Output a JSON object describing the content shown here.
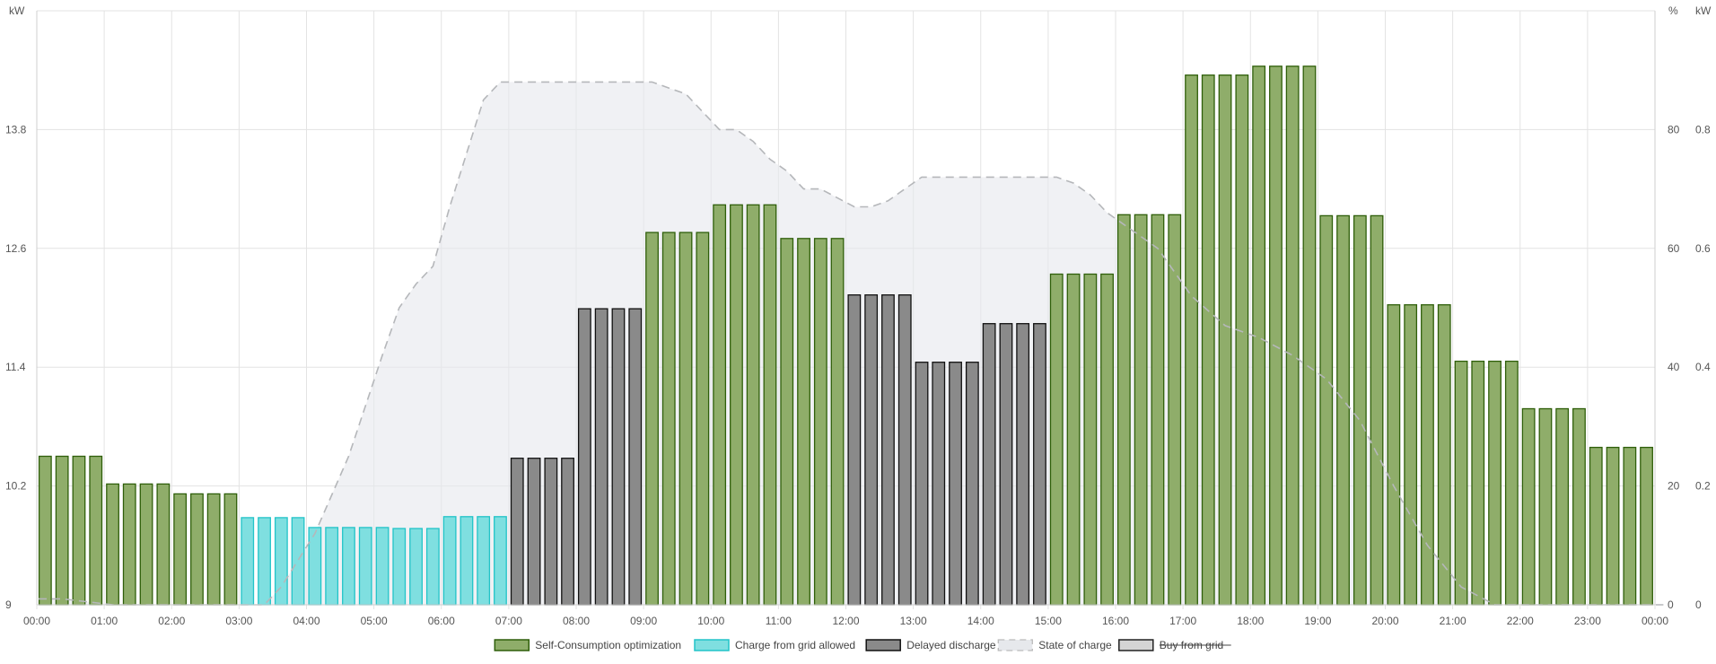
{
  "chart_data": {
    "type": "bar",
    "interval_minutes": 15,
    "x_ticks": [
      "00:00",
      "01:00",
      "02:00",
      "03:00",
      "04:00",
      "05:00",
      "06:00",
      "07:00",
      "08:00",
      "09:00",
      "10:00",
      "11:00",
      "12:00",
      "13:00",
      "14:00",
      "15:00",
      "16:00",
      "17:00",
      "18:00",
      "19:00",
      "20:00",
      "21:00",
      "22:00",
      "23:00",
      "00:00"
    ],
    "axes": {
      "left": {
        "unit": "kW",
        "min": 9,
        "max": 15,
        "ticks": [
          "9",
          "10.2",
          "11.4",
          "12.6",
          "13.8"
        ],
        "tick_values": [
          9,
          10.2,
          11.4,
          12.6,
          13.8
        ]
      },
      "right_percent": {
        "unit": "%",
        "min": 0,
        "max": 100,
        "ticks": [
          "0",
          "20",
          "40",
          "60",
          "80"
        ],
        "tick_values": [
          0,
          20,
          40,
          60,
          80
        ]
      },
      "right_kw": {
        "unit": "kW",
        "min": 0,
        "max": 1,
        "ticks": [
          "0",
          "0.2",
          "0.4",
          "0.6",
          "0.8"
        ],
        "tick_values": [
          0,
          0.2,
          0.4,
          0.6,
          0.8
        ]
      }
    },
    "grid": true,
    "legend_position": "bottom",
    "legend": [
      {
        "key": "self",
        "label": "Self-Consumption optimization",
        "color": "#8fad6a",
        "border": "#2f5f0a",
        "hidden": false
      },
      {
        "key": "charge",
        "label": "Charge from grid allowed",
        "color": "#7fdfe0",
        "border": "#22c4c8",
        "hidden": false
      },
      {
        "key": "delayed",
        "label": "Delayed discharge",
        "color": "#8a8a8a",
        "border": "#111111",
        "hidden": false
      },
      {
        "key": "soc",
        "label": "State of charge",
        "color": "#e6e8ec",
        "border": "#bbbbbb",
        "hidden": false
      },
      {
        "key": "buy",
        "label": "Buy from grid",
        "color": "#d4d4d4",
        "border": "#222222",
        "hidden": true
      }
    ],
    "price_series": {
      "name": "",
      "unit": "kW",
      "values": [
        10.5,
        10.5,
        10.5,
        10.5,
        10.22,
        10.22,
        10.22,
        10.22,
        10.12,
        10.12,
        10.12,
        10.12,
        9.88,
        9.88,
        9.88,
        9.88,
        9.78,
        9.78,
        9.78,
        9.78,
        9.78,
        9.77,
        9.77,
        9.77,
        9.89,
        9.89,
        9.89,
        9.89,
        10.48,
        10.48,
        10.48,
        10.48,
        11.99,
        11.99,
        11.99,
        11.99,
        12.76,
        12.76,
        12.76,
        12.76,
        13.04,
        13.04,
        13.04,
        13.04,
        12.7,
        12.7,
        12.7,
        12.7,
        12.13,
        12.13,
        12.13,
        12.13,
        11.45,
        11.45,
        11.45,
        11.45,
        11.84,
        11.84,
        11.84,
        11.84,
        12.34,
        12.34,
        12.34,
        12.34,
        12.94,
        12.94,
        12.94,
        12.94,
        14.35,
        14.35,
        14.35,
        14.35,
        14.44,
        14.44,
        14.44,
        14.44,
        12.93,
        12.93,
        12.93,
        12.93,
        12.03,
        12.03,
        12.03,
        12.03,
        11.46,
        11.46,
        11.46,
        11.46,
        10.98,
        10.98,
        10.98,
        10.98,
        10.59,
        10.59,
        10.59,
        10.59
      ],
      "mode": [
        "self",
        "self",
        "self",
        "self",
        "self",
        "self",
        "self",
        "self",
        "self",
        "self",
        "self",
        "self",
        "charge",
        "charge",
        "charge",
        "charge",
        "charge",
        "charge",
        "charge",
        "charge",
        "charge",
        "charge",
        "charge",
        "charge",
        "charge",
        "charge",
        "charge",
        "charge",
        "delayed",
        "delayed",
        "delayed",
        "delayed",
        "delayed",
        "delayed",
        "delayed",
        "delayed",
        "self",
        "self",
        "self",
        "self",
        "self",
        "self",
        "self",
        "self",
        "self",
        "self",
        "self",
        "self",
        "delayed",
        "delayed",
        "delayed",
        "delayed",
        "delayed",
        "delayed",
        "delayed",
        "delayed",
        "delayed",
        "delayed",
        "delayed",
        "delayed",
        "self",
        "self",
        "self",
        "self",
        "self",
        "self",
        "self",
        "self",
        "self",
        "self",
        "self",
        "self",
        "self",
        "self",
        "self",
        "self",
        "self",
        "self",
        "self",
        "self",
        "self",
        "self",
        "self",
        "self",
        "self",
        "self",
        "self",
        "self",
        "self",
        "self",
        "self",
        "self",
        "self",
        "self",
        "self",
        "self"
      ]
    },
    "state_of_charge": {
      "unit": "%",
      "points": [
        [
          0,
          1
        ],
        [
          1,
          1
        ],
        [
          4,
          0
        ],
        [
          12,
          0
        ],
        [
          13,
          0
        ],
        [
          14,
          3
        ],
        [
          16,
          12
        ],
        [
          18,
          25
        ],
        [
          20,
          42
        ],
        [
          21,
          50
        ],
        [
          22,
          54
        ],
        [
          23,
          57
        ],
        [
          24,
          67
        ],
        [
          25,
          76
        ],
        [
          26,
          85
        ],
        [
          27,
          88
        ],
        [
          28,
          88
        ],
        [
          29,
          88
        ],
        [
          36,
          88
        ],
        [
          37,
          87
        ],
        [
          38,
          86
        ],
        [
          40,
          80
        ],
        [
          41,
          80
        ],
        [
          42,
          78
        ],
        [
          43,
          75
        ],
        [
          44,
          73
        ],
        [
          45,
          70
        ],
        [
          46,
          70
        ],
        [
          48,
          67
        ],
        [
          49,
          67
        ],
        [
          50,
          68
        ],
        [
          51,
          70
        ],
        [
          52,
          72
        ],
        [
          58,
          72
        ],
        [
          59,
          72
        ],
        [
          60,
          72
        ],
        [
          61,
          71
        ],
        [
          62,
          69
        ],
        [
          63,
          66
        ],
        [
          64,
          64
        ],
        [
          66,
          60
        ],
        [
          68,
          52
        ],
        [
          70,
          47
        ],
        [
          72,
          45
        ],
        [
          74,
          42
        ],
        [
          76,
          38
        ],
        [
          78,
          31
        ],
        [
          80,
          20
        ],
        [
          82,
          10
        ],
        [
          84,
          3
        ],
        [
          86,
          0
        ],
        [
          96,
          0
        ]
      ]
    }
  }
}
